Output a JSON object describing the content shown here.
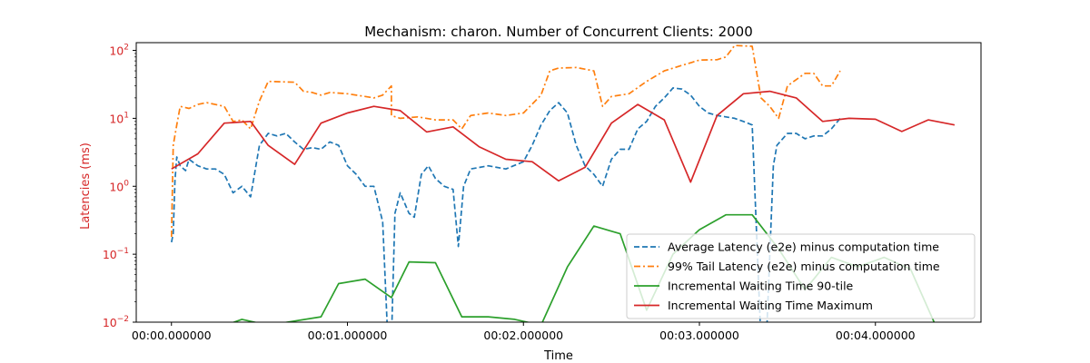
{
  "chart_data": {
    "type": "line",
    "title": "Mechanism: charon. Number of Concurrent Clients: 2000",
    "xlabel": "Time",
    "ylabel": "Latencies (ms)",
    "yscale": "log",
    "ylim": [
      0.01,
      130
    ],
    "xlim": [
      -0.2,
      4.6
    ],
    "x_ticks": [
      {
        "value": 0,
        "label": "00:00.000000"
      },
      {
        "value": 1,
        "label": "00:01.000000"
      },
      {
        "value": 2,
        "label": "00:02.000000"
      },
      {
        "value": 3,
        "label": "00:03.000000"
      },
      {
        "value": 4,
        "label": "00:04.000000"
      }
    ],
    "y_ticks": [
      {
        "value": 0.01,
        "base": "10",
        "exp": "−2"
      },
      {
        "value": 0.1,
        "base": "10",
        "exp": "−1"
      },
      {
        "value": 1,
        "base": "10",
        "exp": "0"
      },
      {
        "value": 10,
        "base": "10",
        "exp": "1"
      },
      {
        "value": 100,
        "base": "10",
        "exp": "2"
      }
    ],
    "y_label_color": "#d62728",
    "grid": false,
    "legend_position": "lower-right",
    "series": [
      {
        "name": "Average Latency (e2e) minus computation time",
        "color": "#1f77b4",
        "style": "dashed",
        "x": [
          0.0,
          0.01,
          0.02,
          0.03,
          0.05,
          0.08,
          0.1,
          0.15,
          0.2,
          0.25,
          0.3,
          0.35,
          0.4,
          0.45,
          0.5,
          0.55,
          0.6,
          0.65,
          0.7,
          0.75,
          0.8,
          0.85,
          0.9,
          0.95,
          1.0,
          1.05,
          1.1,
          1.15,
          1.2,
          1.23,
          1.25,
          1.27,
          1.3,
          1.35,
          1.38,
          1.42,
          1.46,
          1.5,
          1.55,
          1.6,
          1.63,
          1.66,
          1.7,
          1.8,
          1.9,
          2.0,
          2.05,
          2.1,
          2.15,
          2.2,
          2.25,
          2.3,
          2.35,
          2.4,
          2.45,
          2.5,
          2.55,
          2.6,
          2.65,
          2.7,
          2.75,
          2.8,
          2.85,
          2.9,
          2.95,
          3.0,
          3.05,
          3.1,
          3.15,
          3.2,
          3.25,
          3.3,
          3.35,
          3.38,
          3.42,
          3.44,
          3.5,
          3.55,
          3.6,
          3.65,
          3.7,
          3.75,
          3.8
        ],
        "y": [
          0.15,
          0.2,
          1.2,
          2.7,
          2.0,
          1.7,
          2.5,
          2.0,
          1.8,
          1.8,
          1.5,
          0.8,
          1.0,
          0.7,
          4.0,
          6.0,
          5.5,
          6.0,
          4.5,
          3.5,
          3.7,
          3.5,
          4.5,
          4.0,
          2.0,
          1.5,
          1.0,
          1.0,
          0.3,
          0.005,
          0.005,
          0.4,
          0.8,
          0.4,
          0.35,
          1.5,
          2.0,
          1.3,
          1.0,
          0.9,
          0.13,
          1.0,
          1.8,
          2.0,
          1.8,
          2.3,
          4.0,
          8.0,
          13.0,
          17.0,
          12.0,
          4.0,
          2.0,
          1.5,
          1.0,
          2.5,
          3.5,
          3.5,
          7.0,
          9.0,
          15.0,
          20.0,
          28.0,
          27.0,
          22.0,
          15.0,
          12.0,
          11.0,
          10.5,
          10.0,
          9.0,
          8.0,
          0.005,
          0.005,
          2.0,
          4.0,
          6.0,
          6.0,
          5.0,
          5.5,
          5.5,
          7.0,
          10.0
        ]
      },
      {
        "name": "99% Tail Latency (e2e) minus computation time",
        "color": "#ff7f0e",
        "style": "dashdot",
        "x": [
          0.0,
          0.01,
          0.03,
          0.05,
          0.1,
          0.15,
          0.2,
          0.3,
          0.35,
          0.4,
          0.45,
          0.5,
          0.55,
          0.7,
          0.75,
          0.8,
          0.85,
          0.9,
          1.0,
          1.1,
          1.15,
          1.2,
          1.25,
          1.25,
          1.3,
          1.4,
          1.5,
          1.6,
          1.65,
          1.7,
          1.8,
          1.9,
          2.0,
          2.1,
          2.15,
          2.2,
          2.3,
          2.4,
          2.45,
          2.5,
          2.6,
          2.7,
          2.8,
          2.9,
          3.0,
          3.1,
          3.15,
          3.2,
          3.3,
          3.35,
          3.4,
          3.45,
          3.5,
          3.6,
          3.65,
          3.7,
          3.75,
          3.8
        ],
        "y": [
          0.18,
          4.0,
          8.0,
          15.0,
          14.0,
          16.0,
          17.0,
          15.0,
          9.0,
          9.5,
          7.0,
          18.0,
          35.0,
          34.0,
          25.0,
          24.0,
          22.0,
          24.0,
          23.0,
          21.0,
          20.0,
          22.0,
          30.0,
          11.0,
          10.0,
          10.5,
          9.5,
          9.5,
          7.0,
          11.0,
          12.0,
          11.0,
          12.0,
          22.0,
          50.0,
          55.0,
          56.0,
          50.0,
          15.0,
          21.0,
          23.0,
          35.0,
          50.0,
          60.0,
          72.0,
          73.0,
          80.0,
          118.0,
          115.0,
          20.0,
          15.0,
          10.0,
          30.0,
          46.0,
          46.0,
          30.0,
          30.0,
          50.0
        ]
      },
      {
        "name": "Incremental Waiting Time 90-tile",
        "color": "#2ca02c",
        "style": "solid",
        "x": [
          0.25,
          0.4,
          0.55,
          0.85,
          0.95,
          1.1,
          1.25,
          1.35,
          1.5,
          1.65,
          1.8,
          1.95,
          2.1,
          2.25,
          2.4,
          2.55,
          2.7,
          2.85,
          3.0,
          3.15,
          3.3,
          3.45,
          3.6,
          3.75,
          3.9,
          4.05,
          4.2,
          4.35
        ],
        "y": [
          0.008,
          0.011,
          0.009,
          0.012,
          0.037,
          0.043,
          0.023,
          0.077,
          0.075,
          0.012,
          0.012,
          0.011,
          0.009,
          0.065,
          0.26,
          0.2,
          0.015,
          0.1,
          0.23,
          0.38,
          0.38,
          0.12,
          0.03,
          0.09,
          0.065,
          0.09,
          0.06,
          0.008
        ]
      },
      {
        "name": "Incremental Waiting Time Maximum",
        "color": "#d62728",
        "style": "solid",
        "x": [
          0.0,
          0.15,
          0.3,
          0.45,
          0.55,
          0.7,
          0.85,
          1.0,
          1.15,
          1.3,
          1.45,
          1.6,
          1.75,
          1.9,
          2.05,
          2.2,
          2.35,
          2.5,
          2.65,
          2.8,
          2.95,
          3.1,
          3.25,
          3.4,
          3.55,
          3.7,
          3.85,
          4.0,
          4.15,
          4.3,
          4.45
        ],
        "y": [
          1.8,
          3.0,
          8.5,
          9.0,
          4.0,
          2.1,
          8.5,
          12.0,
          15.0,
          13.0,
          6.3,
          7.5,
          3.8,
          2.5,
          2.3,
          1.2,
          1.9,
          8.5,
          16.0,
          9.5,
          1.15,
          11.0,
          23.0,
          25.0,
          20.0,
          9.0,
          10.0,
          9.7,
          6.4,
          9.5,
          8.0
        ]
      }
    ]
  }
}
